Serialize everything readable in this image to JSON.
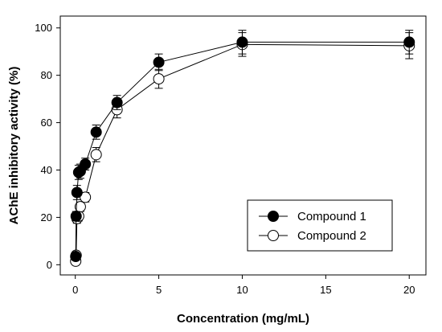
{
  "chart_data": {
    "type": "scatter",
    "title": "",
    "xlabel": "Concentration (mg/mL)",
    "ylabel": "AChE inhibitory activity (%)",
    "xlim": [
      -0.9,
      21
    ],
    "ylim": [
      -4.3,
      105
    ],
    "x_ticks": [
      0,
      5,
      10,
      15,
      20
    ],
    "y_ticks": [
      0,
      20,
      40,
      60,
      80,
      100
    ],
    "legend_position": "bottom-right",
    "grid": false,
    "series": [
      {
        "name": "Compound 1",
        "marker": "filled-circle",
        "color": "#000000",
        "x": [
          0.025,
          0.05,
          0.1,
          0.2,
          0.3,
          0.6,
          1.25,
          2.5,
          5,
          10,
          20
        ],
        "y": [
          3.5,
          20.5,
          30.5,
          39,
          39.5,
          42.5,
          56,
          68.5,
          85.5,
          94,
          94
        ],
        "err": [
          1.5,
          2,
          3,
          3,
          3,
          2.5,
          3,
          3,
          3.5,
          5,
          5
        ]
      },
      {
        "name": "Compound 2",
        "marker": "open-circle",
        "color": "#000000",
        "x": [
          0.025,
          0.05,
          0.1,
          0.2,
          0.3,
          0.6,
          1.25,
          2.5,
          5,
          10,
          20
        ],
        "y": [
          1.5,
          4,
          19.5,
          20.5,
          24.5,
          28.5,
          46.5,
          65.5,
          78.5,
          93,
          92.5
        ],
        "err": [
          1,
          1,
          2,
          2,
          2,
          2,
          3,
          3.5,
          4,
          5,
          5.5
        ]
      }
    ]
  }
}
